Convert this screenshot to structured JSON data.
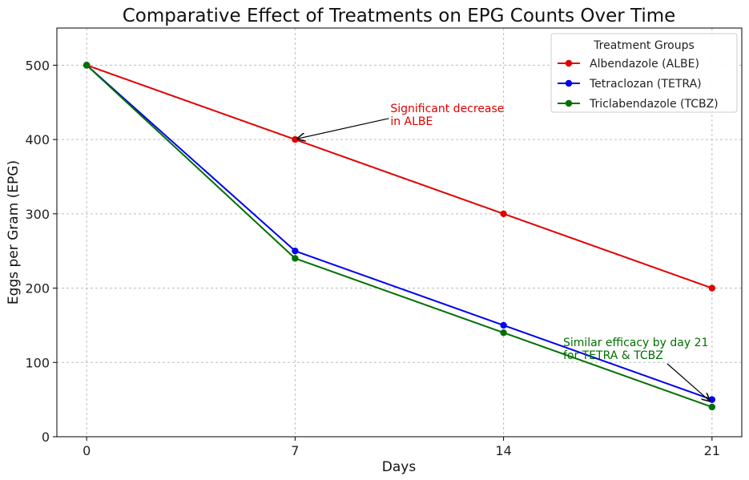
{
  "chart_data": {
    "type": "line",
    "title": "Comparative Effect of Treatments on EPG Counts Over Time",
    "xlabel": "Days",
    "ylabel": "Eggs per Gram (EPG)",
    "x": [
      0,
      7,
      14,
      21
    ],
    "x_ticks": [
      "0",
      "7",
      "14",
      "21"
    ],
    "xlim": [
      -1,
      22
    ],
    "y_ticks": [
      "0",
      "100",
      "200",
      "300",
      "400",
      "500"
    ],
    "ylim": [
      0,
      550
    ],
    "grid": true,
    "legend": {
      "title": "Treatment Groups",
      "placement": "top-right"
    },
    "series": [
      {
        "name": "Albendazole (ALBE)",
        "color": "#e00000",
        "values": [
          500,
          400,
          300,
          200
        ]
      },
      {
        "name": "Tetraclozan (TETRA)",
        "color": "#0000ee",
        "values": [
          500,
          250,
          150,
          50
        ]
      },
      {
        "name": "Triclabendazole (TCBZ)",
        "color": "#007000",
        "values": [
          500,
          240,
          140,
          40
        ]
      }
    ],
    "annotations": [
      {
        "lines": [
          "Significant decrease",
          "in ALBE"
        ],
        "color": "#e00000",
        "points_to": {
          "x": 7,
          "y": 400
        },
        "text_at": {
          "x": 10.2,
          "y": 437
        }
      },
      {
        "lines": [
          "Similar efficacy by day 21",
          "for TETRA & TCBZ"
        ],
        "color": "#007000",
        "points_to": {
          "x": 21,
          "y": 45
        },
        "text_at": {
          "x": 16,
          "y": 122
        }
      }
    ]
  }
}
